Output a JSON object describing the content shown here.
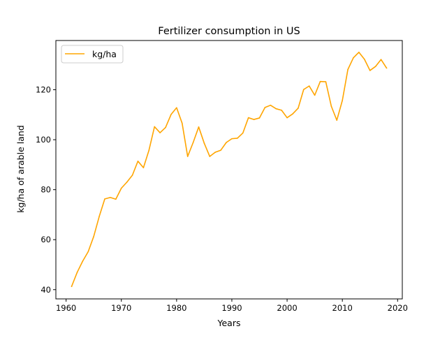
{
  "chart_data": {
    "type": "line",
    "title": "Fertilizer consumption in US",
    "xlabel": "Years",
    "ylabel": "kg/ha of arable land",
    "xlim": [
      1958.15,
      2020.85
    ],
    "ylim": [
      36.3,
      139.7
    ],
    "xticks": [
      1960,
      1970,
      1980,
      1990,
      2000,
      2010,
      2020
    ],
    "yticks": [
      40,
      60,
      80,
      100,
      120
    ],
    "grid": false,
    "legend_position": "top-left",
    "series": [
      {
        "name": "kg/ha",
        "color": "#ffa500",
        "x": [
          1961,
          1962,
          1963,
          1964,
          1965,
          1966,
          1967,
          1968,
          1969,
          1970,
          1971,
          1972,
          1973,
          1974,
          1975,
          1976,
          1977,
          1978,
          1979,
          1980,
          1981,
          1982,
          1983,
          1984,
          1985,
          1986,
          1987,
          1988,
          1989,
          1990,
          1991,
          1992,
          1993,
          1994,
          1995,
          1996,
          1997,
          1998,
          1999,
          2000,
          2001,
          2002,
          2003,
          2004,
          2005,
          2006,
          2007,
          2008,
          2009,
          2010,
          2011,
          2012,
          2013,
          2014,
          2015,
          2016,
          2017,
          2018
        ],
        "y": [
          41.3,
          46.9,
          51.4,
          55.2,
          61.3,
          69.3,
          76.3,
          76.9,
          76.2,
          80.6,
          83.0,
          85.8,
          91.4,
          88.8,
          95.8,
          105.2,
          102.8,
          104.9,
          110.1,
          112.8,
          106.6,
          93.3,
          98.9,
          105.1,
          98.6,
          93.3,
          95.0,
          95.8,
          98.9,
          100.4,
          100.6,
          102.7,
          108.8,
          108.1,
          108.7,
          112.9,
          113.8,
          112.4,
          111.8,
          108.8,
          110.3,
          112.6,
          120.1,
          121.5,
          117.8,
          123.3,
          123.2,
          113.4,
          107.8,
          115.7,
          128.1,
          132.8,
          135.0,
          132.2,
          127.7,
          129.3,
          132.1,
          128.7
        ]
      }
    ]
  }
}
